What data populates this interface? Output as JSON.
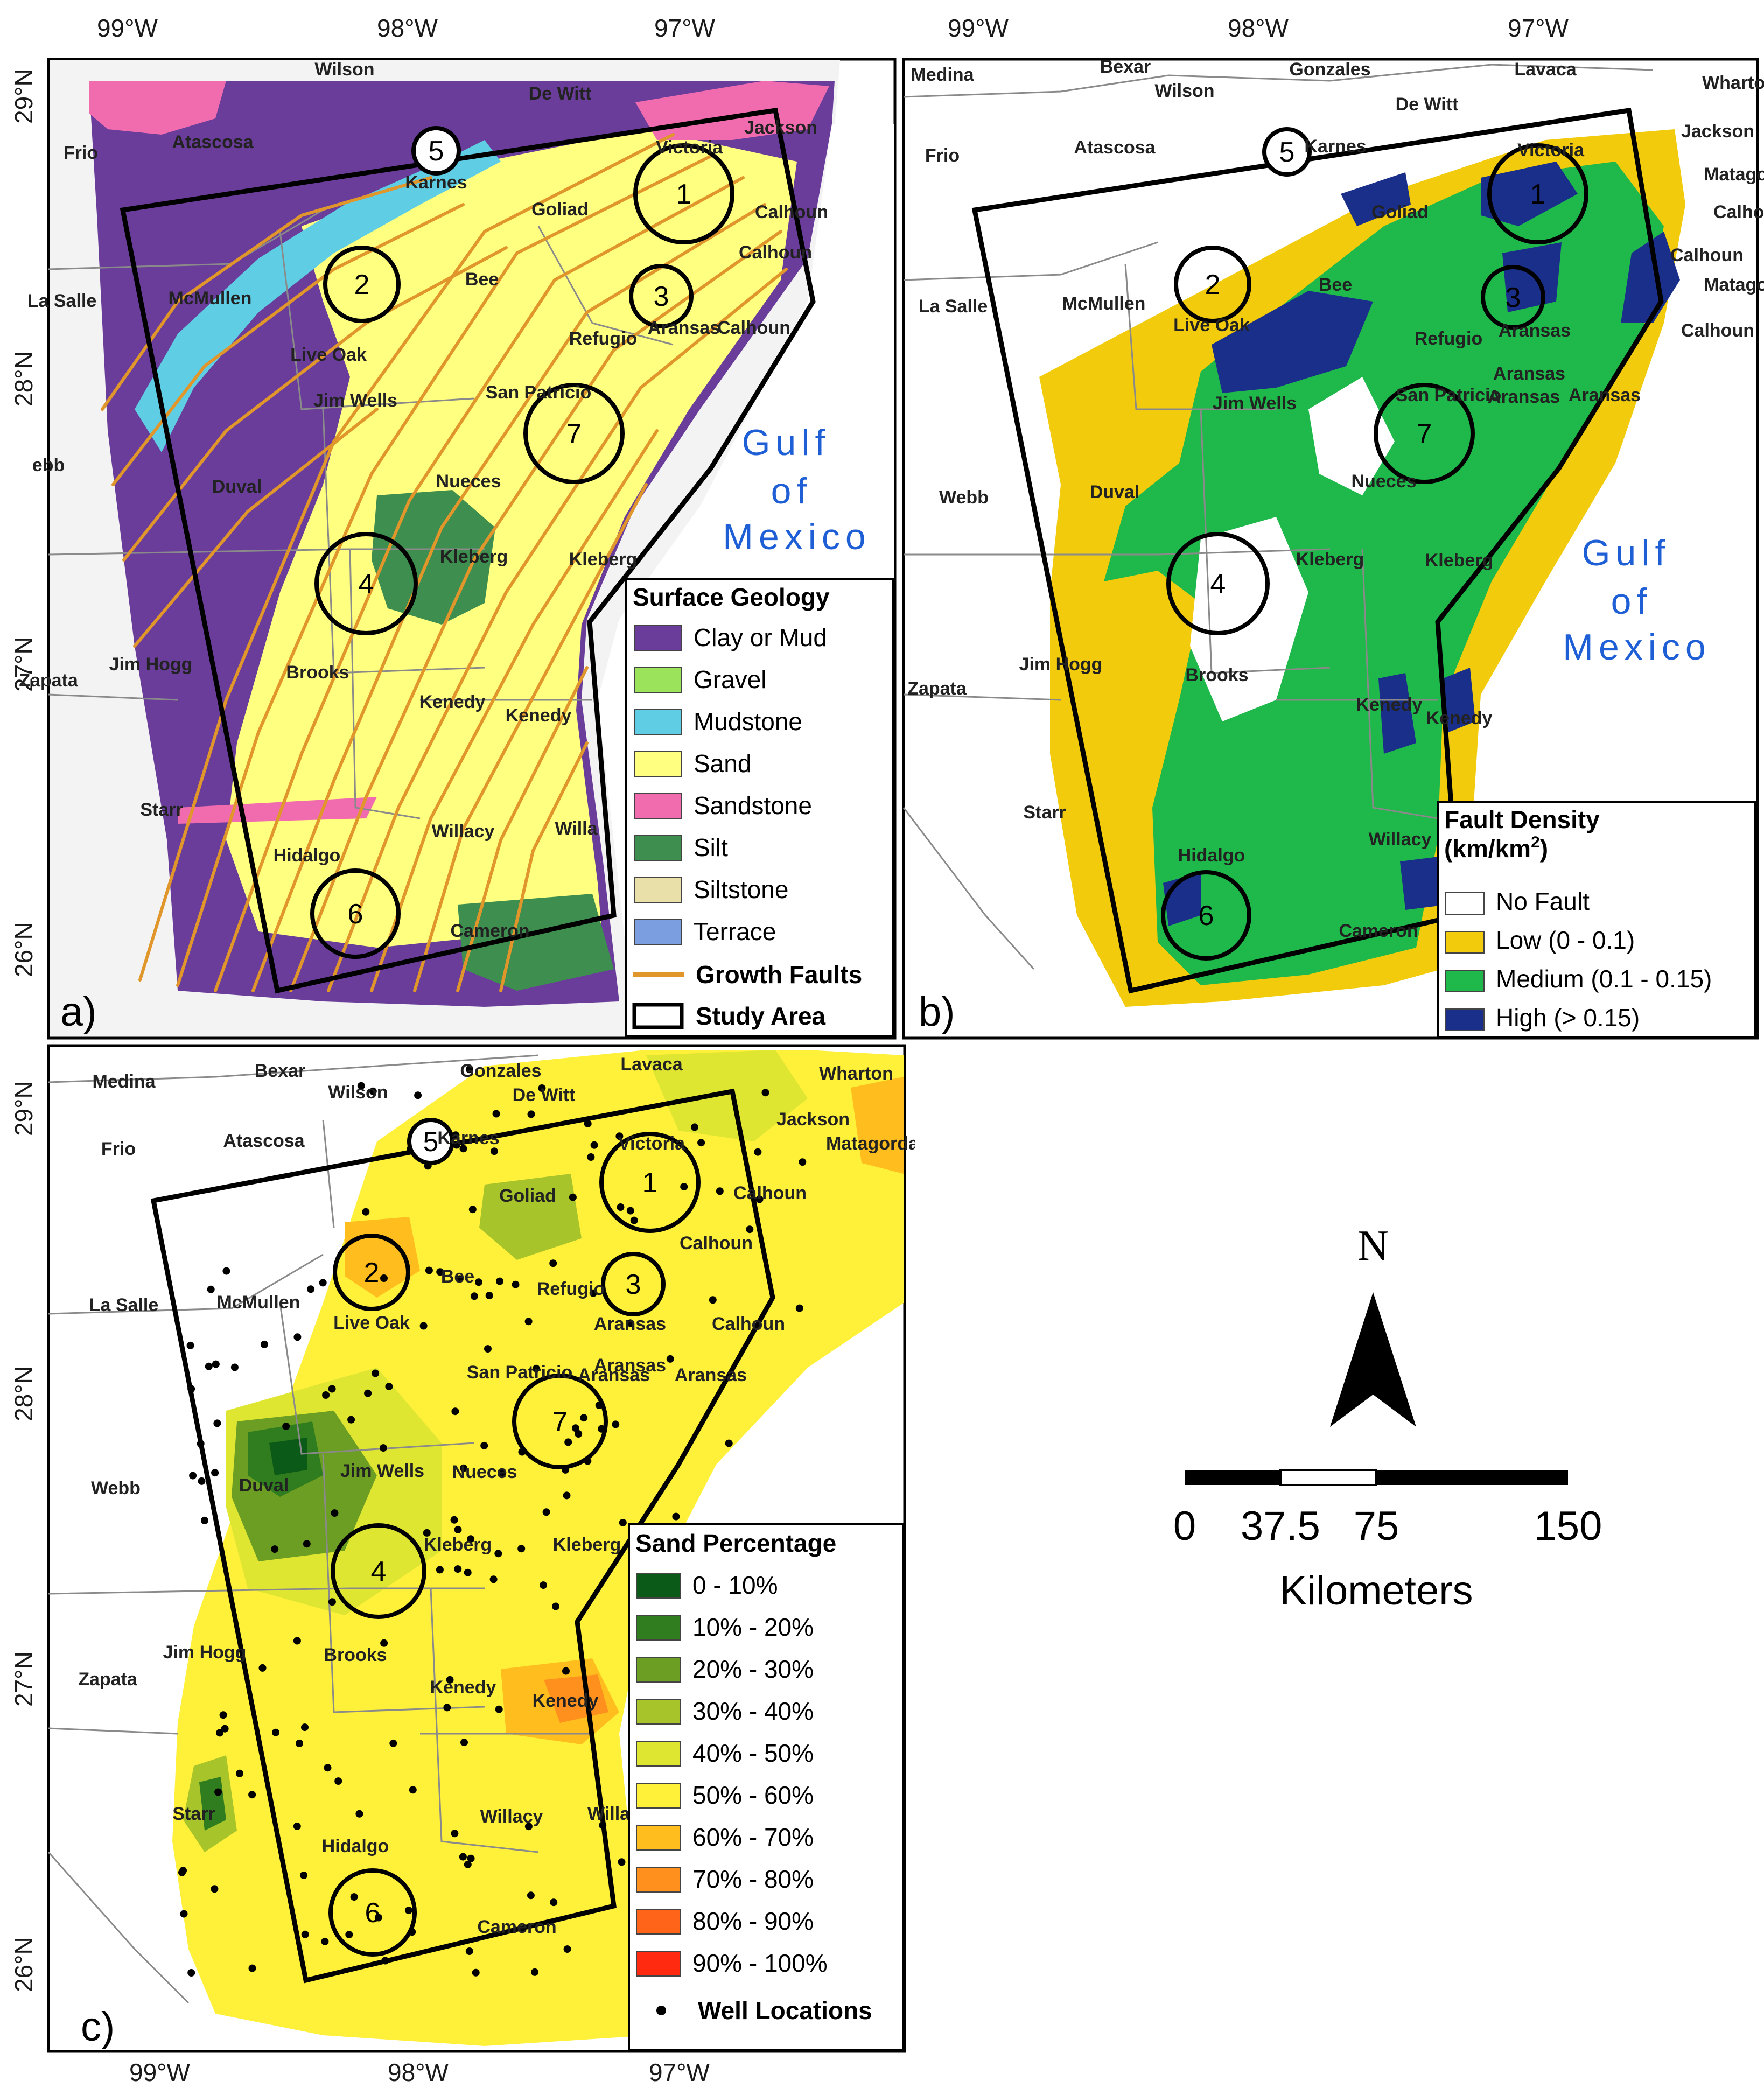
{
  "panels": {
    "a": {
      "letter": "a)",
      "lon_labels": [
        "99°W",
        "98°W",
        "97°W"
      ],
      "lat_labels": [
        "29°N",
        "28°N",
        "27°N",
        "26°N"
      ],
      "gulf_label": [
        "Gulf",
        "of",
        "Mexico"
      ],
      "legend": {
        "title": "Surface Geology",
        "items": [
          {
            "label": "Clay or Mud",
            "color": "#6a3d9a"
          },
          {
            "label": "Gravel",
            "color": "#9be35a"
          },
          {
            "label": "Mudstone",
            "color": "#5fcde4"
          },
          {
            "label": "Sand",
            "color": "#ffff80"
          },
          {
            "label": "Sandstone",
            "color": "#f06cae"
          },
          {
            "label": "Silt",
            "color": "#3e8e4f"
          },
          {
            "label": "Siltstone",
            "color": "#e8e0a8"
          },
          {
            "label": "Terrace",
            "color": "#7a9ee0"
          }
        ],
        "faults_label": "Growth Faults",
        "fault_color": "#e0962a",
        "study_area_label": "Study Area"
      },
      "counties": [
        "Wilson",
        "De Witt",
        "Jackson",
        "Frio",
        "Atascosa",
        "Karnes",
        "Victoria",
        "Goliad",
        "Calhoun",
        "Calhoun",
        "La Salle",
        "McMullen",
        "Bee",
        "Aransas",
        "Calhoun",
        "Refugio",
        "Live Oak",
        "Jim Wells",
        "San Patricio",
        "ebb",
        "Nueces",
        "Duval",
        "Kleberg",
        "Kleberg",
        "Jim Hogg",
        "Brooks",
        "Zapata",
        "Kenedy",
        "Kenedy",
        "Starr",
        "Willacy",
        "Willa",
        "Hidalgo",
        "Cameron"
      ]
    },
    "b": {
      "letter": "b)",
      "lon_labels": [
        "99°W",
        "98°W",
        "97°W"
      ],
      "gulf_label": [
        "Gulf",
        "of",
        "Mexico"
      ],
      "legend": {
        "title": "Fault Density",
        "unit_prefix": "(km/km",
        "unit_sup": "2",
        "unit_suffix": ")",
        "items": [
          {
            "label": "No Fault",
            "color": "#ffffff"
          },
          {
            "label": "Low (0 - 0.1)",
            "color": "#f2cc0c"
          },
          {
            "label": "Medium (0.1 - 0.15)",
            "color": "#1fb84a"
          },
          {
            "label": "High (> 0.15)",
            "color": "#1a2f8a"
          }
        ]
      },
      "counties": [
        "Medina",
        "Bexar",
        "Gonzales",
        "Lavaca",
        "Wharton",
        "Wilson",
        "De Witt",
        "Jackson",
        "Frio",
        "Atascosa",
        "Karnes",
        "Victoria",
        "Matagorda",
        "Goliad",
        "Calhoun",
        "Calhoun",
        "Matagorda",
        "La Salle",
        "McMullen",
        "Bee",
        "Live Oak",
        "Refugio",
        "Aransas",
        "Calhoun",
        "Aransas",
        "San Patricio",
        "Aransas",
        "Aransas",
        "Jim Wells",
        "Webb",
        "Duval",
        "Nueces",
        "Kleberg",
        "Kleberg",
        "Jim Hogg",
        "Brooks",
        "Zapata",
        "Kenedy",
        "Kenedy",
        "Starr",
        "Hidalgo",
        "Willacy",
        "Cameron"
      ]
    },
    "c": {
      "letter": "c)",
      "lon_labels": [
        "99°W",
        "98°W",
        "97°W"
      ],
      "lat_labels": [
        "29°N",
        "28°N",
        "27°N",
        "26°N"
      ],
      "legend": {
        "title": "Sand Percentage",
        "items": [
          {
            "label": "0 - 10%",
            "color": "#0b5a17"
          },
          {
            "label": "10% - 20%",
            "color": "#2f7d1e"
          },
          {
            "label": "20% - 30%",
            "color": "#6b9e22"
          },
          {
            "label": "30% - 40%",
            "color": "#a7c42a"
          },
          {
            "label": "40% - 50%",
            "color": "#dfe632"
          },
          {
            "label": "50% - 60%",
            "color": "#fff03a"
          },
          {
            "label": "60% - 70%",
            "color": "#ffbe1e"
          },
          {
            "label": "70% - 80%",
            "color": "#ff901e"
          },
          {
            "label": "80% - 90%",
            "color": "#ff6418"
          },
          {
            "label": "90% - 100%",
            "color": "#ff2a10"
          }
        ],
        "wells_label": "Well Locations"
      },
      "counties": [
        "Medina",
        "Bexar",
        "Gonzales",
        "Lavaca",
        "Wharton",
        "Wilson",
        "De Witt",
        "Jackson",
        "Frio",
        "Atascosa",
        "Karnes",
        "Victoria",
        "Matagorda",
        "Goliad",
        "Calhoun",
        "Calhoun",
        "La Salle",
        "McMullen",
        "Bee",
        "Refugio",
        "Live Oak",
        "Aransas",
        "Calhoun",
        "Aransas",
        "San Patricio",
        "Aransas",
        "Aransas",
        "Webb",
        "Duval",
        "Jim Wells",
        "Nueces",
        "Kleberg",
        "Kleberg",
        "Jim Hogg",
        "Brooks",
        "Zapata",
        "Kenedy",
        "Kenedy",
        "Starr",
        "Willacy",
        "Willac",
        "Hidalgo",
        "Cameron"
      ]
    }
  },
  "study_sites": [
    "1",
    "2",
    "3",
    "4",
    "5",
    "6",
    "7"
  ],
  "north_arrow": {
    "label": "N"
  },
  "scale_bar": {
    "ticks": [
      "0",
      "37.5",
      "75",
      "150"
    ],
    "unit": "Kilometers"
  }
}
